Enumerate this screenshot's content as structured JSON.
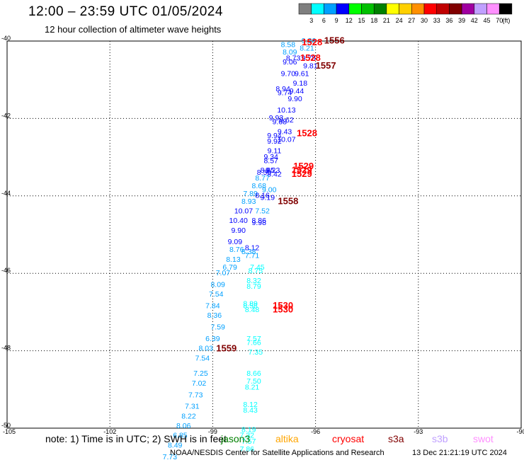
{
  "title": "12:00 – 23:59 UTC 01/05/2024",
  "subtitle": "12 hour collection of altimeter wave heights",
  "colorbar": {
    "labels": [
      "3",
      "6",
      "9",
      "12",
      "15",
      "18",
      "21",
      "24",
      "27",
      "30",
      "33",
      "36",
      "39",
      "42",
      "45",
      "70",
      "(ft)"
    ],
    "colors": [
      "#7f7f7f",
      "#00ffff",
      "#00a0ff",
      "#0000ff",
      "#00ff00",
      "#00c000",
      "#008000",
      "#ffff00",
      "#ffd000",
      "#ff9000",
      "#ff0000",
      "#c00000",
      "#800000",
      "#a000a0",
      "#c0a0ff",
      "#ff90ff",
      "#000000"
    ]
  },
  "axes": {
    "x_ticks": [
      "-105",
      "-102",
      "-99",
      "-96",
      "-93",
      "-90"
    ],
    "y_ticks": [
      "-40",
      "-42",
      "-44",
      "-46",
      "-48",
      "-50"
    ]
  },
  "chart_data": {
    "type": "scatter",
    "xlim": [
      -105,
      -90
    ],
    "ylim": [
      -50,
      -40
    ],
    "grid": true,
    "points": [
      {
        "lon": -96.8,
        "lat": -40.1,
        "label": "8.58",
        "color": "#00a0ff"
      },
      {
        "lon": -96.2,
        "lat": -40.0,
        "label": "9.36",
        "color": "#00a0ff"
      },
      {
        "lon": -96.25,
        "lat": -40.2,
        "label": "8.21",
        "color": "#00a0ff"
      },
      {
        "lon": -96.75,
        "lat": -40.3,
        "label": "8.09",
        "color": "#00a0ff"
      },
      {
        "lon": -96.65,
        "lat": -40.45,
        "label": "8.73",
        "color": "#0000ff"
      },
      {
        "lon": -96.2,
        "lat": -40.45,
        "label": "9.78",
        "color": "#0000ff"
      },
      {
        "lon": -96.75,
        "lat": -40.55,
        "label": "9.06",
        "color": "#0000ff"
      },
      {
        "lon": -96.15,
        "lat": -40.65,
        "label": "9.81",
        "color": "#0000ff"
      },
      {
        "lon": -96.8,
        "lat": -40.85,
        "label": "9.70",
        "color": "#0000ff"
      },
      {
        "lon": -96.4,
        "lat": -40.85,
        "label": "9.61",
        "color": "#0000ff"
      },
      {
        "lon": -96.45,
        "lat": -41.1,
        "label": "9.18",
        "color": "#0000ff"
      },
      {
        "lon": -96.95,
        "lat": -41.25,
        "label": "8.94",
        "color": "#0000ff"
      },
      {
        "lon": -96.55,
        "lat": -41.3,
        "label": "9.44",
        "color": "#0000ff"
      },
      {
        "lon": -96.9,
        "lat": -41.35,
        "label": "9.74",
        "color": "#0000ff"
      },
      {
        "lon": -96.6,
        "lat": -41.5,
        "label": "9.90",
        "color": "#0000ff"
      },
      {
        "lon": -96.85,
        "lat": -41.8,
        "label": "10.13",
        "color": "#0000ff"
      },
      {
        "lon": -97.15,
        "lat": -42.0,
        "label": "9.93",
        "color": "#0000ff"
      },
      {
        "lon": -96.85,
        "lat": -42.05,
        "label": "9.62",
        "color": "#0000ff"
      },
      {
        "lon": -97.05,
        "lat": -42.1,
        "label": "9.68",
        "color": "#0000ff"
      },
      {
        "lon": -96.9,
        "lat": -42.35,
        "label": "9.43",
        "color": "#0000ff"
      },
      {
        "lon": -97.2,
        "lat": -42.45,
        "label": "9.94",
        "color": "#0000ff"
      },
      {
        "lon": -96.85,
        "lat": -42.55,
        "label": "10.07",
        "color": "#0000ff"
      },
      {
        "lon": -97.2,
        "lat": -42.6,
        "label": "9.92",
        "color": "#0000ff"
      },
      {
        "lon": -97.2,
        "lat": -42.85,
        "label": "9.11",
        "color": "#0000ff"
      },
      {
        "lon": -97.3,
        "lat": -43.0,
        "label": "9.34",
        "color": "#0000ff"
      },
      {
        "lon": -97.3,
        "lat": -43.1,
        "label": "8.57",
        "color": "#0000ff"
      },
      {
        "lon": -97.4,
        "lat": -43.35,
        "label": "8.85",
        "color": "#0000ff"
      },
      {
        "lon": -97.25,
        "lat": -43.35,
        "label": "8.23",
        "color": "#0000ff"
      },
      {
        "lon": -97.5,
        "lat": -43.4,
        "label": "8.50",
        "color": "#0000ff"
      },
      {
        "lon": -97.2,
        "lat": -43.45,
        "label": "8.42",
        "color": "#0000ff"
      },
      {
        "lon": -97.55,
        "lat": -43.55,
        "label": "8.77",
        "color": "#00a0ff"
      },
      {
        "lon": -97.65,
        "lat": -43.75,
        "label": "8.68",
        "color": "#00a0ff"
      },
      {
        "lon": -97.35,
        "lat": -43.85,
        "label": "9.00",
        "color": "#00a0ff"
      },
      {
        "lon": -97.9,
        "lat": -43.95,
        "label": "7.89",
        "color": "#00a0ff"
      },
      {
        "lon": -97.55,
        "lat": -44.0,
        "label": "8.16",
        "color": "#0000ff"
      },
      {
        "lon": -97.4,
        "lat": -44.05,
        "label": "9.19",
        "color": "#0000ff"
      },
      {
        "lon": -97.95,
        "lat": -44.15,
        "label": "8.93",
        "color": "#00a0ff"
      },
      {
        "lon": -97.55,
        "lat": -44.4,
        "label": "7.52",
        "color": "#00a0ff"
      },
      {
        "lon": -98.1,
        "lat": -44.4,
        "label": "10.07",
        "color": "#0000ff"
      },
      {
        "lon": -98.25,
        "lat": -44.65,
        "label": "10.40",
        "color": "#0000ff"
      },
      {
        "lon": -97.65,
        "lat": -44.65,
        "label": "8.86",
        "color": "#0000ff"
      },
      {
        "lon": -97.65,
        "lat": -44.7,
        "label": "9.98",
        "color": "#0000ff"
      },
      {
        "lon": -98.25,
        "lat": -44.9,
        "label": "9.90",
        "color": "#0000ff"
      },
      {
        "lon": -98.35,
        "lat": -45.2,
        "label": "9.09",
        "color": "#0000ff"
      },
      {
        "lon": -97.85,
        "lat": -45.35,
        "label": "8.12",
        "color": "#0000ff"
      },
      {
        "lon": -98.3,
        "lat": -45.4,
        "label": "8.76",
        "color": "#00a0ff"
      },
      {
        "lon": -97.95,
        "lat": -45.45,
        "label": "8.38",
        "color": "#00a0ff"
      },
      {
        "lon": -97.85,
        "lat": -45.55,
        "label": "7.71",
        "color": "#00a0ff"
      },
      {
        "lon": -98.4,
        "lat": -45.65,
        "label": "8.13",
        "color": "#00a0ff"
      },
      {
        "lon": -98.5,
        "lat": -45.85,
        "label": "6.79",
        "color": "#00a0ff"
      },
      {
        "lon": -97.7,
        "lat": -45.85,
        "label": "7.45",
        "color": "#00ffff"
      },
      {
        "lon": -97.75,
        "lat": -45.95,
        "label": "8.75",
        "color": "#00ffff"
      },
      {
        "lon": -98.7,
        "lat": -46.0,
        "label": "7.07",
        "color": "#00a0ff"
      },
      {
        "lon": -97.8,
        "lat": -46.2,
        "label": "8.32",
        "color": "#00ffff"
      },
      {
        "lon": -98.85,
        "lat": -46.3,
        "label": "8.09",
        "color": "#00a0ff"
      },
      {
        "lon": -97.8,
        "lat": -46.35,
        "label": "8.79",
        "color": "#00ffff"
      },
      {
        "lon": -98.9,
        "lat": -46.55,
        "label": "7.54",
        "color": "#00a0ff"
      },
      {
        "lon": -97.9,
        "lat": -46.8,
        "label": "8.89",
        "color": "#00ffff"
      },
      {
        "lon": -97.9,
        "lat": -46.85,
        "label": "8.58",
        "color": "#00ffff"
      },
      {
        "lon": -99.0,
        "lat": -46.85,
        "label": "7.84",
        "color": "#00a0ff"
      },
      {
        "lon": -97.85,
        "lat": -46.95,
        "label": "8.48",
        "color": "#00ffff"
      },
      {
        "lon": -98.95,
        "lat": -47.1,
        "label": "8.36",
        "color": "#00a0ff"
      },
      {
        "lon": -98.85,
        "lat": -47.4,
        "label": "7.59",
        "color": "#00a0ff"
      },
      {
        "lon": -99.0,
        "lat": -47.7,
        "label": "6.39",
        "color": "#00a0ff"
      },
      {
        "lon": -97.8,
        "lat": -47.7,
        "label": "7.57",
        "color": "#00ffff"
      },
      {
        "lon": -97.8,
        "lat": -47.8,
        "label": "7.66",
        "color": "#00ffff"
      },
      {
        "lon": -99.2,
        "lat": -47.95,
        "label": "8.03",
        "color": "#00a0ff"
      },
      {
        "lon": -97.75,
        "lat": -48.05,
        "label": "7.35",
        "color": "#00ffff"
      },
      {
        "lon": -99.3,
        "lat": -48.2,
        "label": "7.54",
        "color": "#00a0ff"
      },
      {
        "lon": -99.35,
        "lat": -48.6,
        "label": "7.25",
        "color": "#00a0ff"
      },
      {
        "lon": -97.8,
        "lat": -48.6,
        "label": "8.66",
        "color": "#00ffff"
      },
      {
        "lon": -97.8,
        "lat": -48.8,
        "label": "7.50",
        "color": "#00ffff"
      },
      {
        "lon": -99.4,
        "lat": -48.85,
        "label": "7.02",
        "color": "#00a0ff"
      },
      {
        "lon": -97.85,
        "lat": -48.95,
        "label": "8.21",
        "color": "#00ffff"
      },
      {
        "lon": -99.5,
        "lat": -49.15,
        "label": "7.73",
        "color": "#00a0ff"
      },
      {
        "lon": -97.9,
        "lat": -49.4,
        "label": "8.12",
        "color": "#00ffff"
      },
      {
        "lon": -99.6,
        "lat": -49.45,
        "label": "7.31",
        "color": "#00a0ff"
      },
      {
        "lon": -97.9,
        "lat": -49.55,
        "label": "8.43",
        "color": "#00ffff"
      },
      {
        "lon": -99.7,
        "lat": -49.7,
        "label": "8.22",
        "color": "#00a0ff"
      },
      {
        "lon": -99.85,
        "lat": -49.95,
        "label": "8.06",
        "color": "#00a0ff"
      },
      {
        "lon": -97.95,
        "lat": -50.05,
        "label": "8.19",
        "color": "#00ffff"
      },
      {
        "lon": -99.95,
        "lat": -50.2,
        "label": "6.85",
        "color": "#00a0ff"
      },
      {
        "lon": -98.0,
        "lat": -50.2,
        "label": "7.32",
        "color": "#00ffff"
      },
      {
        "lon": -97.95,
        "lat": -50.35,
        "label": "7.57",
        "color": "#00ffff"
      },
      {
        "lon": -100.1,
        "lat": -50.45,
        "label": "8.49",
        "color": "#00a0ff"
      },
      {
        "lon": -98.0,
        "lat": -50.55,
        "label": "7.86",
        "color": "#00ffff"
      },
      {
        "lon": -100.25,
        "lat": -50.75,
        "label": "7.73",
        "color": "#00a0ff"
      }
    ],
    "pass_labels": [
      {
        "lon": -95.45,
        "lat": -40.0,
        "label": "1556",
        "color": "#800000"
      },
      {
        "lon": -96.1,
        "lat": -40.05,
        "label": "1528",
        "color": "#ff0000"
      },
      {
        "lon": -96.15,
        "lat": -40.45,
        "label": "1528",
        "color": "#ff0000"
      },
      {
        "lon": -95.7,
        "lat": -40.65,
        "label": "1557",
        "color": "#800000"
      },
      {
        "lon": -96.25,
        "lat": -42.4,
        "label": "1528",
        "color": "#ff0000"
      },
      {
        "lon": -96.35,
        "lat": -43.25,
        "label": "1529",
        "color": "#ff0000"
      },
      {
        "lon": -96.4,
        "lat": -43.35,
        "label": "1529",
        "color": "#ff0000"
      },
      {
        "lon": -96.4,
        "lat": -43.45,
        "label": "1529",
        "color": "#ff0000"
      },
      {
        "lon": -96.8,
        "lat": -44.15,
        "label": "1558",
        "color": "#800000"
      },
      {
        "lon": -96.95,
        "lat": -46.85,
        "label": "1530",
        "color": "#ff0000"
      },
      {
        "lon": -96.95,
        "lat": -46.95,
        "label": "1530",
        "color": "#ff0000"
      },
      {
        "lon": -98.6,
        "lat": -47.95,
        "label": "1559",
        "color": "#800000"
      }
    ]
  },
  "note": "note:  1) Time is in UTC;  2) SWH is in feet",
  "satellites": [
    {
      "name": "jason3",
      "color": "#008000"
    },
    {
      "name": "altika",
      "color": "#ffa500"
    },
    {
      "name": "cryosat",
      "color": "#ff0000"
    },
    {
      "name": "s3a",
      "color": "#800000"
    },
    {
      "name": "s3b",
      "color": "#c0a0ff"
    },
    {
      "name": "swot",
      "color": "#ff90ff"
    }
  ],
  "footer": {
    "credit": "NOAA/NESDIS Center for Satellite Applications and Research",
    "timestamp": "13 Dec 21:21:19 UTC 2024"
  }
}
